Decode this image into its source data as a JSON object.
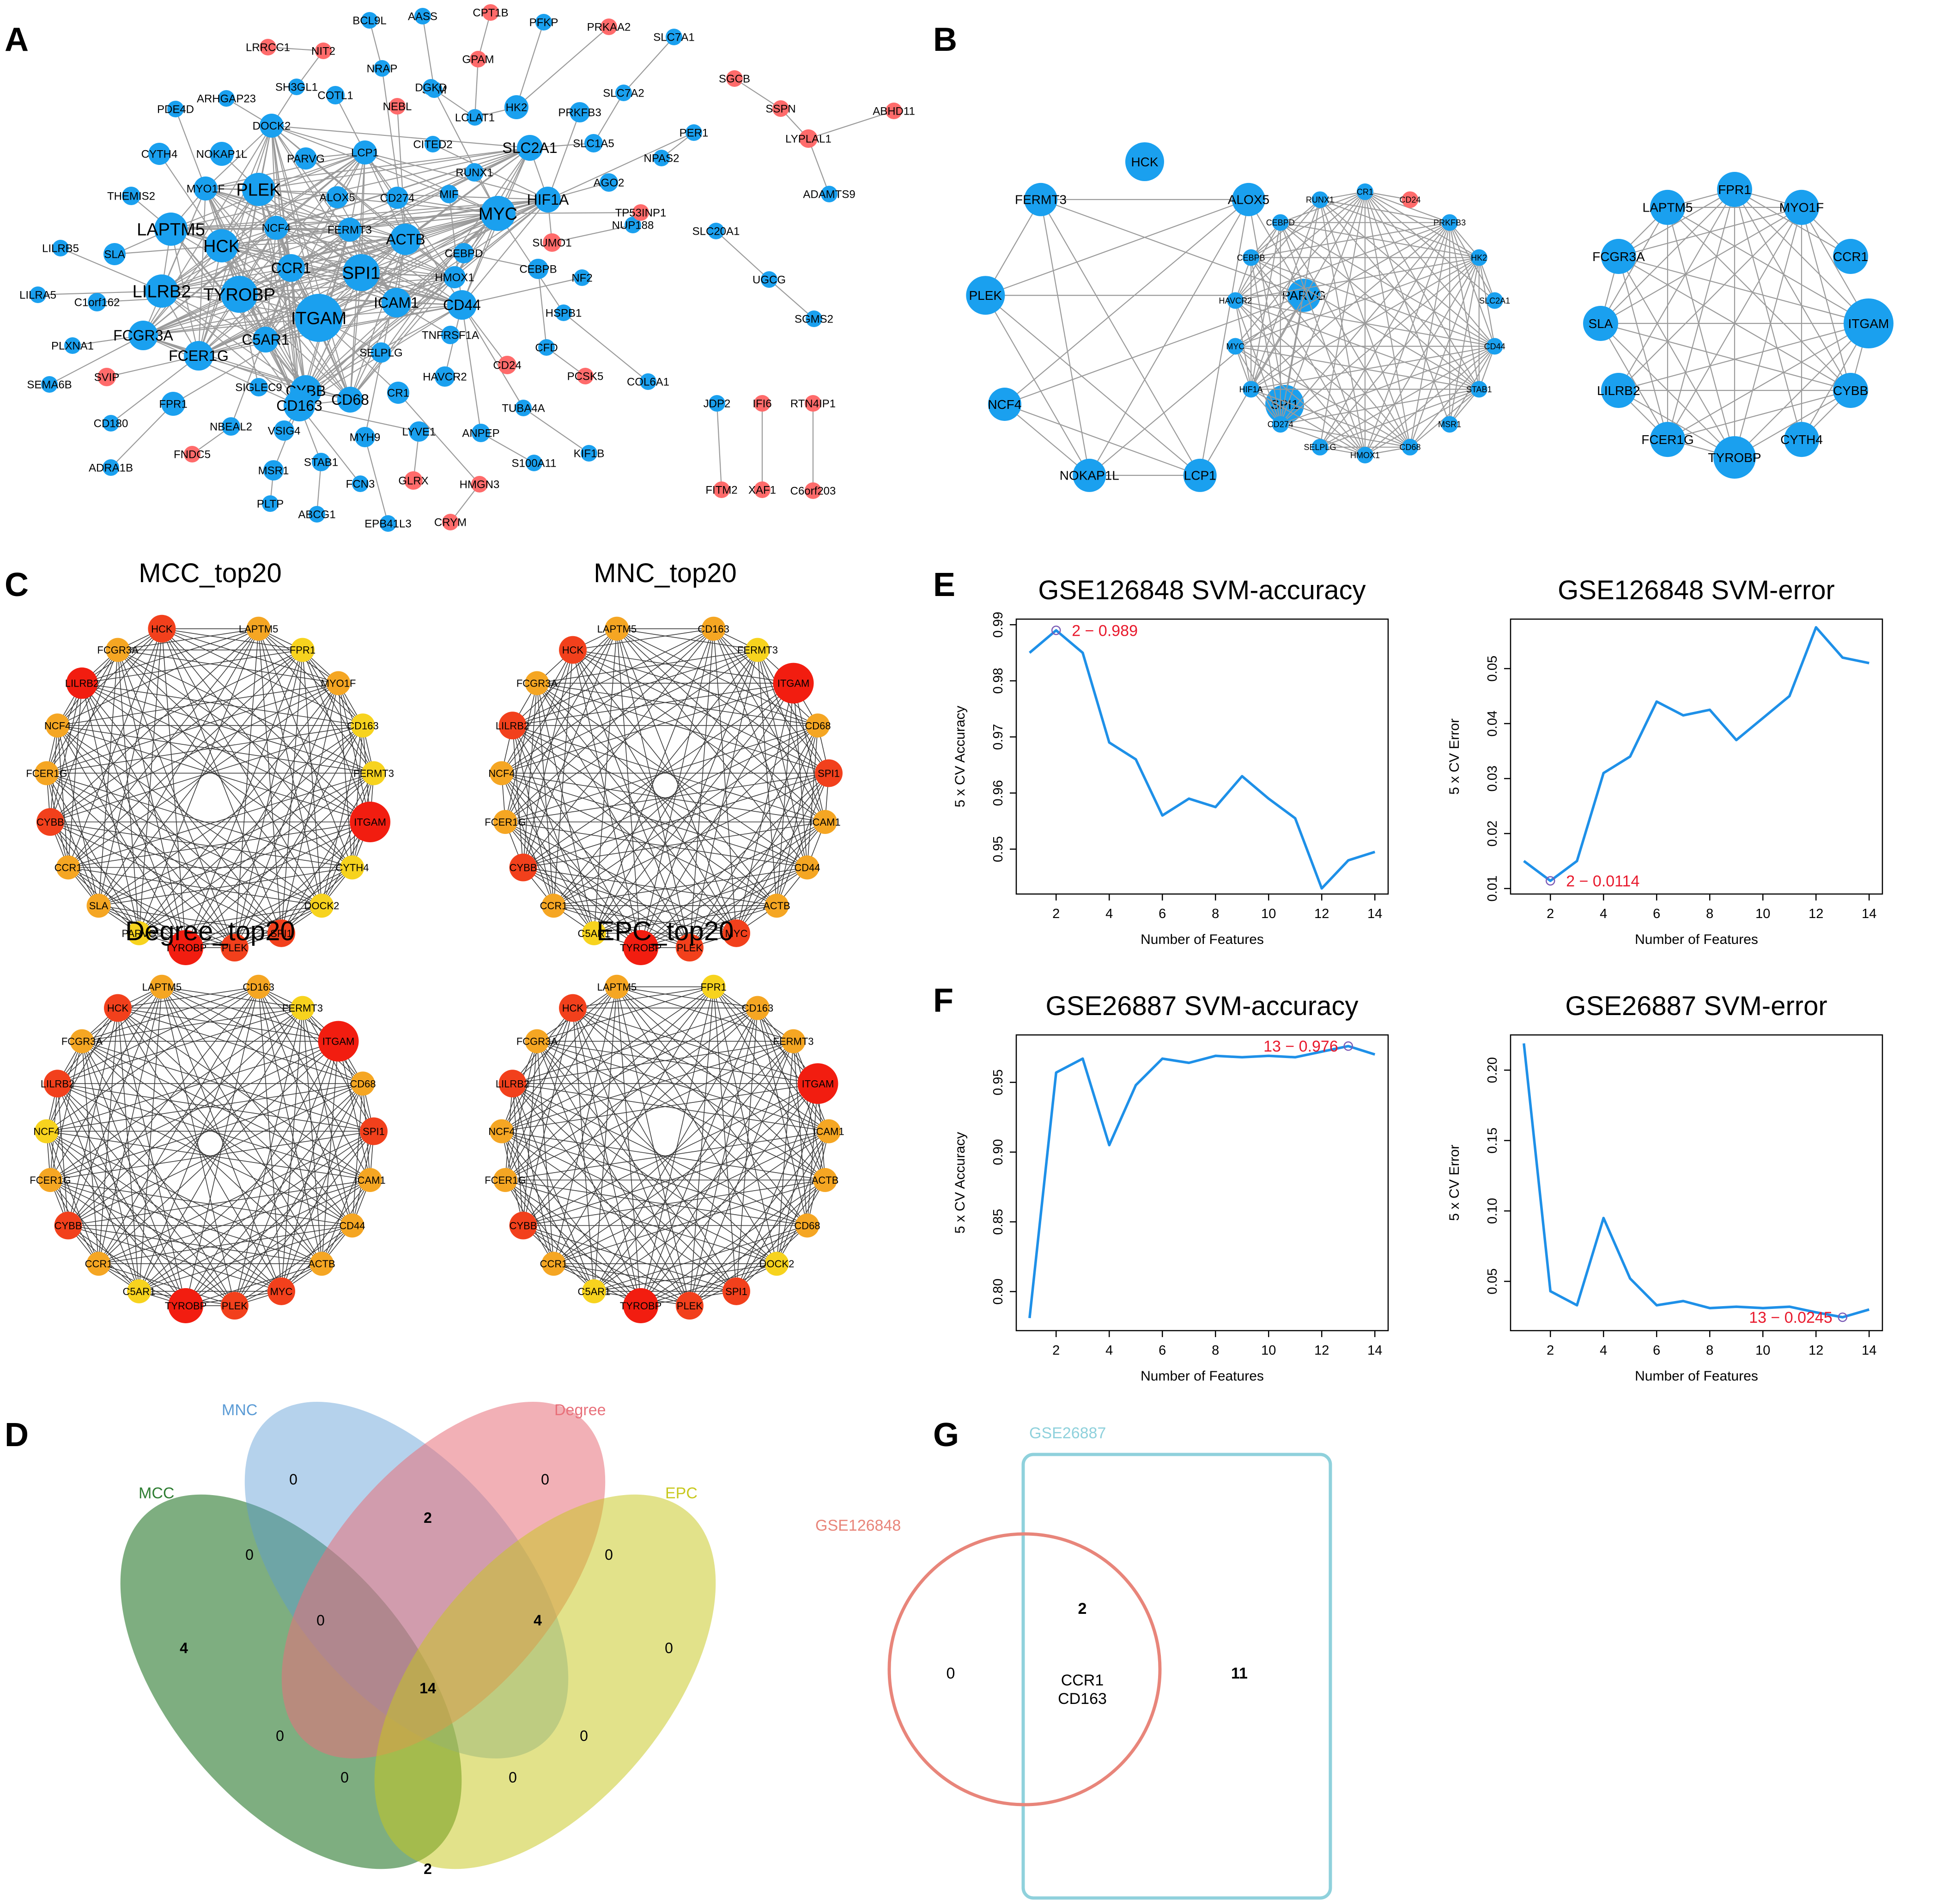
{
  "panel_labels": [
    "A",
    "B",
    "C",
    "D",
    "E",
    "F",
    "G"
  ],
  "colors": {
    "up": "#ff6b6b",
    "down": "#1aa0ef",
    "edge": "#9a9a9a",
    "line": "#1e90e8",
    "highlight": "#e8192c"
  },
  "panelA": {
    "nodes": [
      {
        "id": "ITGAM",
        "r": 52,
        "c": "down"
      },
      {
        "id": "TYROBP",
        "r": 40,
        "c": "down"
      },
      {
        "id": "SPI1",
        "r": 40,
        "c": "down"
      },
      {
        "id": "LILRB2",
        "r": 36,
        "c": "down"
      },
      {
        "id": "CYBB",
        "r": 34,
        "c": "down"
      },
      {
        "id": "FCGR3A",
        "r": 32,
        "c": "down"
      },
      {
        "id": "HCK",
        "r": 36,
        "c": "down"
      },
      {
        "id": "LAPTM5",
        "r": 36,
        "c": "down"
      },
      {
        "id": "CD163",
        "r": 34,
        "c": "down"
      },
      {
        "id": "ACTB",
        "r": 34,
        "c": "down"
      },
      {
        "id": "MYC",
        "r": 38,
        "c": "down"
      },
      {
        "id": "CD44",
        "r": 32,
        "c": "down"
      },
      {
        "id": "ICAM1",
        "r": 32,
        "c": "down"
      },
      {
        "id": "PLEK",
        "r": 36,
        "c": "down"
      },
      {
        "id": "CCR1",
        "r": 30,
        "c": "down"
      },
      {
        "id": "C5AR1",
        "r": 28,
        "c": "down"
      },
      {
        "id": "FCER1G",
        "r": 32,
        "c": "down"
      },
      {
        "id": "CD68",
        "r": 28,
        "c": "down"
      },
      {
        "id": "CYTH4",
        "r": 24,
        "c": "down"
      },
      {
        "id": "NOKAP1L",
        "r": 26,
        "c": "down"
      },
      {
        "id": "MYO1F",
        "r": 26,
        "c": "down"
      },
      {
        "id": "DOCK2",
        "r": 26,
        "c": "down"
      },
      {
        "id": "PARVG",
        "r": 24,
        "c": "down"
      },
      {
        "id": "LCP1",
        "r": 26,
        "c": "down"
      },
      {
        "id": "ALOX5",
        "r": 24,
        "c": "down"
      },
      {
        "id": "NCF4",
        "r": 26,
        "c": "down"
      },
      {
        "id": "FERMT3",
        "r": 26,
        "c": "down"
      },
      {
        "id": "CD274",
        "r": 24,
        "c": "down"
      },
      {
        "id": "MIF",
        "r": 20,
        "c": "down"
      },
      {
        "id": "HIF1A",
        "r": 28,
        "c": "down"
      },
      {
        "id": "SLC2A1",
        "r": 28,
        "c": "down"
      },
      {
        "id": "HK2",
        "r": 26,
        "c": "down"
      },
      {
        "id": "PRKFB3",
        "r": 22,
        "c": "down"
      },
      {
        "id": "RUNX1",
        "r": 20,
        "c": "down"
      },
      {
        "id": "HMOX1",
        "r": 24,
        "c": "down"
      },
      {
        "id": "CEBPD",
        "r": 22,
        "c": "down"
      },
      {
        "id": "CEBPB",
        "r": 22,
        "c": "down"
      },
      {
        "id": "SELPLG",
        "r": 22,
        "c": "down"
      },
      {
        "id": "CR1",
        "r": 24,
        "c": "down"
      },
      {
        "id": "HAVCR2",
        "r": 22,
        "c": "down"
      },
      {
        "id": "SLA",
        "r": 24,
        "c": "down"
      },
      {
        "id": "FPR1",
        "r": 26,
        "c": "down"
      },
      {
        "id": "SIGLEC9",
        "r": 20,
        "c": "down"
      },
      {
        "id": "VSIG4",
        "r": 22,
        "c": "down"
      },
      {
        "id": "MYH9",
        "r": 22,
        "c": "down"
      },
      {
        "id": "LYVE1",
        "r": 22,
        "c": "down"
      },
      {
        "id": "TNFRSF1A",
        "r": 20,
        "c": "down"
      },
      {
        "id": "STAB1",
        "r": 20,
        "c": "down"
      },
      {
        "id": "MSR1",
        "r": 22,
        "c": "down"
      },
      {
        "id": "NBEAL2",
        "r": 20,
        "c": "down"
      },
      {
        "id": "CD180",
        "r": 18,
        "c": "down"
      },
      {
        "id": "THEMIS2",
        "r": 20,
        "c": "down"
      },
      {
        "id": "LILRB5",
        "r": 18,
        "c": "down"
      },
      {
        "id": "LILRA5",
        "r": 18,
        "c": "down"
      },
      {
        "id": "C1orf162",
        "r": 20,
        "c": "down"
      },
      {
        "id": "PLXNA1",
        "r": 18,
        "c": "down"
      },
      {
        "id": "SEMA6B",
        "r": 18,
        "c": "down"
      },
      {
        "id": "SVIP",
        "r": 20,
        "c": "up"
      },
      {
        "id": "ADRA1B",
        "r": 18,
        "c": "down"
      },
      {
        "id": "FNDC5",
        "r": 18,
        "c": "up"
      },
      {
        "id": "PLTP",
        "r": 18,
        "c": "down"
      },
      {
        "id": "ABCG1",
        "r": 18,
        "c": "down"
      },
      {
        "id": "EPB41L3",
        "r": 18,
        "c": "down"
      },
      {
        "id": "FCN3",
        "r": 18,
        "c": "down"
      },
      {
        "id": "GLRX",
        "r": 20,
        "c": "up"
      },
      {
        "id": "CRYM",
        "r": 18,
        "c": "up"
      },
      {
        "id": "HMGN3",
        "r": 18,
        "c": "up"
      },
      {
        "id": "S100A11",
        "r": 18,
        "c": "down"
      },
      {
        "id": "ANPEP",
        "r": 20,
        "c": "down"
      },
      {
        "id": "TUBA4A",
        "r": 18,
        "c": "down"
      },
      {
        "id": "KIF1B",
        "r": 18,
        "c": "down"
      },
      {
        "id": "CD24",
        "r": 20,
        "c": "up"
      },
      {
        "id": "CFD",
        "r": 18,
        "c": "down"
      },
      {
        "id": "PCSK5",
        "r": 18,
        "c": "up"
      },
      {
        "id": "COL6A1",
        "r": 18,
        "c": "down"
      },
      {
        "id": "HSPB1",
        "r": 18,
        "c": "down"
      },
      {
        "id": "NF2",
        "r": 18,
        "c": "down"
      },
      {
        "id": "SUMO1",
        "r": 20,
        "c": "up"
      },
      {
        "id": "NUP188",
        "r": 18,
        "c": "down"
      },
      {
        "id": "TP53INP1",
        "r": 18,
        "c": "up"
      },
      {
        "id": "AGO2",
        "r": 20,
        "c": "down"
      },
      {
        "id": "NPAS2",
        "r": 18,
        "c": "down"
      },
      {
        "id": "PER1",
        "r": 18,
        "c": "down"
      },
      {
        "id": "SLC1A5",
        "r": 20,
        "c": "down"
      },
      {
        "id": "SLC7A2",
        "r": 18,
        "c": "down"
      },
      {
        "id": "SLC7A1",
        "r": 18,
        "c": "down"
      },
      {
        "id": "PRKAA2",
        "r": 18,
        "c": "up"
      },
      {
        "id": "PFKP",
        "r": 18,
        "c": "down"
      },
      {
        "id": "CPT1B",
        "r": 18,
        "c": "up"
      },
      {
        "id": "GPAM",
        "r": 18,
        "c": "up"
      },
      {
        "id": "LCLAT1",
        "r": 18,
        "c": "down"
      },
      {
        "id": "SRM",
        "r": 18,
        "c": "down"
      },
      {
        "id": "DGKD",
        "r": 18,
        "c": "down"
      },
      {
        "id": "AASS",
        "r": 18,
        "c": "down"
      },
      {
        "id": "BCL9L",
        "r": 18,
        "c": "down"
      },
      {
        "id": "NRAP",
        "r": 18,
        "c": "down"
      },
      {
        "id": "NIT2",
        "r": 18,
        "c": "up"
      },
      {
        "id": "LRRCC1",
        "r": 18,
        "c": "up"
      },
      {
        "id": "SH3GL1",
        "r": 18,
        "c": "down"
      },
      {
        "id": "COTL1",
        "r": 20,
        "c": "down"
      },
      {
        "id": "NEBL",
        "r": 18,
        "c": "up"
      },
      {
        "id": "CITED2",
        "r": 18,
        "c": "down"
      },
      {
        "id": "ARHGAP23",
        "r": 18,
        "c": "down"
      },
      {
        "id": "PDE4D",
        "r": 18,
        "c": "down"
      },
      {
        "id": "SGCB",
        "r": 18,
        "c": "up"
      },
      {
        "id": "SSPN",
        "r": 18,
        "c": "up"
      },
      {
        "id": "LYPLAL1",
        "r": 20,
        "c": "up"
      },
      {
        "id": "ABHD11",
        "r": 18,
        "c": "up"
      },
      {
        "id": "ADAMTS9",
        "r": 18,
        "c": "down"
      },
      {
        "id": "SLC20A1",
        "r": 18,
        "c": "down"
      },
      {
        "id": "UGCG",
        "r": 18,
        "c": "down"
      },
      {
        "id": "SGMS2",
        "r": 18,
        "c": "down"
      },
      {
        "id": "JDP2",
        "r": 18,
        "c": "down"
      },
      {
        "id": "FITM2",
        "r": 18,
        "c": "up"
      },
      {
        "id": "IFI6",
        "r": 18,
        "c": "up"
      },
      {
        "id": "XAF1",
        "r": 18,
        "c": "up"
      },
      {
        "id": "RTN4IP1",
        "r": 18,
        "c": "up"
      },
      {
        "id": "C6orf203",
        "r": 18,
        "c": "up"
      }
    ]
  },
  "panelB": {
    "networks": [
      {
        "nodes": [
          "HCK",
          "ALOX5",
          "PARVG",
          "SPI1",
          "LCP1",
          "NOKAP1L",
          "NCF4",
          "PLEK",
          "FERMT3"
        ],
        "colors": [
          "down",
          "down",
          "down",
          "down",
          "down",
          "down",
          "down",
          "down",
          "down"
        ]
      },
      {
        "nodes": [
          "CR1",
          "CD24",
          "PRKFB3",
          "HK2",
          "SLC2A1",
          "CD44",
          "STAB1",
          "MSR1",
          "CD68",
          "HMOX1",
          "SELPLG",
          "CD274",
          "HIF1A",
          "MYC",
          "HAVCR2",
          "CEBPB",
          "CEBPD",
          "RUNX1"
        ],
        "colors": [
          "down",
          "up",
          "down",
          "down",
          "down",
          "down",
          "down",
          "down",
          "down",
          "down",
          "down",
          "down",
          "down",
          "down",
          "down",
          "down",
          "down",
          "down"
        ]
      },
      {
        "nodes": [
          "FPR1",
          "MYO1F",
          "CCR1",
          "ITGAM",
          "CYBB",
          "CYTH4",
          "TYROBP",
          "FCER1G",
          "LILRB2",
          "SLA",
          "FCGR3A",
          "LAPTM5"
        ],
        "colors": [
          "down",
          "down",
          "down",
          "down",
          "down",
          "down",
          "down",
          "down",
          "down",
          "down",
          "down",
          "down"
        ]
      }
    ]
  },
  "panelC": {
    "networks": [
      {
        "title": "MCC_top20",
        "nodes": [
          "LAPTM5",
          "FPR1",
          "MYO1F",
          "CD163",
          "FERMT3",
          "ITGAM",
          "CYTH4",
          "DOCK2",
          "SPI1",
          "PLEK",
          "TYROBP",
          "PARVG",
          "SLA",
          "CCR1",
          "CYBB",
          "FCER1G",
          "NCF4",
          "LILRB2",
          "FCGR3A",
          "HCK"
        ],
        "colors": [
          "#f5a623",
          "#f7d31e",
          "#f5a623",
          "#f7d31e",
          "#f7d31e",
          "#f21d10",
          "#f7d31e",
          "#f7d31e",
          "#f2401c",
          "#f2401c",
          "#f21d10",
          "#f7d31e",
          "#f5a623",
          "#f5a623",
          "#f2401c",
          "#f5a623",
          "#f5a623",
          "#f21d10",
          "#f5a623",
          "#f2401c"
        ]
      },
      {
        "title": "MNC_top20",
        "nodes": [
          "CD163",
          "FERMT3",
          "ITGAM",
          "CD68",
          "SPI1",
          "ICAM1",
          "CD44",
          "ACTB",
          "MYC",
          "PLEK",
          "TYROBP",
          "C5AR1",
          "CCR1",
          "CYBB",
          "FCER1G",
          "NCF4",
          "LILRB2",
          "FCGR3A",
          "HCK",
          "LAPTM5"
        ],
        "colors": [
          "#f5a623",
          "#f7d31e",
          "#f21d10",
          "#f5a623",
          "#f2401c",
          "#f5a623",
          "#f5a623",
          "#f5a623",
          "#f2401c",
          "#f2401c",
          "#f21d10",
          "#f7d31e",
          "#f5a623",
          "#f2401c",
          "#f5a623",
          "#f5a623",
          "#f2401c",
          "#f5a623",
          "#f2401c",
          "#f5a623"
        ]
      },
      {
        "title": "Degree_top20",
        "nodes": [
          "CD163",
          "FERMT3",
          "ITGAM",
          "CD68",
          "SPI1",
          "ICAM1",
          "CD44",
          "ACTB",
          "MYC",
          "PLEK",
          "TYROBP",
          "C5AR1",
          "CCR1",
          "CYBB",
          "FCER1G",
          "NCF4",
          "LILRB2",
          "FCGR3A",
          "HCK",
          "LAPTM5"
        ],
        "colors": [
          "#f5a623",
          "#f7d31e",
          "#f21d10",
          "#f5a623",
          "#f2401c",
          "#f5a623",
          "#f5a623",
          "#f5a623",
          "#f2401c",
          "#f2401c",
          "#f21d10",
          "#f7d31e",
          "#f5a623",
          "#f2401c",
          "#f5a623",
          "#f7d31e",
          "#f2401c",
          "#f5a623",
          "#f2401c",
          "#f5a623"
        ]
      },
      {
        "title": "EPC_top20",
        "nodes": [
          "FPR1",
          "CD163",
          "FERMT3",
          "ITGAM",
          "ICAM1",
          "ACTB",
          "CD68",
          "DOCK2",
          "SPI1",
          "PLEK",
          "TYROBP",
          "C5AR1",
          "CCR1",
          "CYBB",
          "FCER1G",
          "NCF4",
          "LILRB2",
          "FCGR3A",
          "HCK",
          "LAPTM5"
        ],
        "colors": [
          "#f7d31e",
          "#f5a623",
          "#f5a623",
          "#f21d10",
          "#f5a623",
          "#f5a623",
          "#f5a623",
          "#f7d31e",
          "#f2401c",
          "#f2401c",
          "#f21d10",
          "#f7d31e",
          "#f5a623",
          "#f2401c",
          "#f5a623",
          "#f5a623",
          "#f2401c",
          "#f5a623",
          "#f2401c",
          "#f5a623"
        ]
      }
    ]
  },
  "panelD": {
    "sets": [
      {
        "name": "MCC",
        "color": "#2e7d32"
      },
      {
        "name": "MNC",
        "color": "#5b9bd5"
      },
      {
        "name": "Degree",
        "color": "#e8707a"
      },
      {
        "name": "EPC",
        "color": "#c8c81e"
      }
    ],
    "counts": {
      "mnc_only": "0",
      "degree_only": "0",
      "mcc_only": "4",
      "epc_only": "0",
      "mcc_mnc": "0",
      "mnc_degree": "2",
      "degree_epc": "0",
      "mcc_epc": "2",
      "mcc_mnc_degree": "0",
      "mnc_degree_epc": "4",
      "all": "14",
      "mcc_degree": "0",
      "mnc_epc": "0",
      "mcc_mnc_epc": "0",
      "mcc_degree_epc": "0"
    }
  },
  "panelG": {
    "setA": "GSE126848",
    "setB": "GSE26887",
    "colorA": "#e8857a",
    "colorB": "#8fd1dc",
    "onlyA": "0",
    "both": "2",
    "onlyB": "11",
    "genes": [
      "CCR1",
      "CD163"
    ]
  },
  "chart_data": [
    {
      "type": "line",
      "title": "GSE126848 SVM-accuracy",
      "xlabel": "Number of Features",
      "ylabel": "5 x CV Accuracy",
      "x": [
        1,
        2,
        3,
        4,
        5,
        6,
        7,
        8,
        9,
        10,
        11,
        12,
        13,
        14
      ],
      "values": [
        0.985,
        0.989,
        0.985,
        0.969,
        0.966,
        0.956,
        0.959,
        0.9575,
        0.963,
        0.959,
        0.9555,
        0.943,
        0.948,
        0.9495
      ],
      "xlim": [
        0.5,
        14.5
      ],
      "ylim": [
        0.942,
        0.991
      ],
      "xticks": [
        2,
        4,
        6,
        8,
        10,
        12,
        14
      ],
      "yticks": [
        0.95,
        0.96,
        0.97,
        0.98,
        0.99
      ],
      "ytick_labels": [
        "0.95",
        "0.96",
        "0.97",
        "0.98",
        "0.99"
      ],
      "annotation": "2 − 0.989",
      "best_index": 1,
      "label_side": "right"
    },
    {
      "type": "line",
      "title": "GSE126848 SVM-error",
      "xlabel": "Number of Features",
      "ylabel": "5 x CV Error",
      "x": [
        1,
        2,
        3,
        4,
        5,
        6,
        7,
        8,
        9,
        10,
        11,
        12,
        13,
        14
      ],
      "values": [
        0.015,
        0.0114,
        0.015,
        0.031,
        0.034,
        0.044,
        0.0415,
        0.0425,
        0.037,
        0.041,
        0.045,
        0.0575,
        0.052,
        0.051
      ],
      "xlim": [
        0.5,
        14.5
      ],
      "ylim": [
        0.009,
        0.059
      ],
      "xticks": [
        2,
        4,
        6,
        8,
        10,
        12,
        14
      ],
      "yticks": [
        0.01,
        0.02,
        0.03,
        0.04,
        0.05
      ],
      "ytick_labels": [
        "0.01",
        "0.02",
        "0.03",
        "0.04",
        "0.05"
      ],
      "annotation": "2 − 0.0114",
      "best_index": 1,
      "label_side": "right"
    },
    {
      "type": "line",
      "title": "GSE26887 SVM-accuracy",
      "xlabel": "Number of Features",
      "ylabel": "5 x CV Accuracy",
      "x": [
        1,
        2,
        3,
        4,
        5,
        6,
        7,
        8,
        9,
        10,
        11,
        12,
        13,
        14
      ],
      "values": [
        0.781,
        0.957,
        0.967,
        0.905,
        0.948,
        0.967,
        0.964,
        0.969,
        0.968,
        0.969,
        0.968,
        0.972,
        0.976,
        0.97
      ],
      "xlim": [
        0.5,
        14.5
      ],
      "ylim": [
        0.772,
        0.984
      ],
      "xticks": [
        2,
        4,
        6,
        8,
        10,
        12,
        14
      ],
      "yticks": [
        0.8,
        0.85,
        0.9,
        0.95
      ],
      "ytick_labels": [
        "0.80",
        "0.85",
        "0.90",
        "0.95"
      ],
      "annotation": "13 − 0.976",
      "best_index": 12,
      "label_side": "left"
    },
    {
      "type": "line",
      "title": "GSE26887 SVM-error",
      "xlabel": "Number of Features",
      "ylabel": "5 x CV Error",
      "x": [
        1,
        2,
        3,
        4,
        5,
        6,
        7,
        8,
        9,
        10,
        11,
        12,
        13,
        14
      ],
      "values": [
        0.219,
        0.043,
        0.033,
        0.095,
        0.052,
        0.033,
        0.036,
        0.031,
        0.032,
        0.031,
        0.032,
        0.028,
        0.0245,
        0.03
      ],
      "xlim": [
        0.5,
        14.5
      ],
      "ylim": [
        0.015,
        0.225
      ],
      "xticks": [
        2,
        4,
        6,
        8,
        10,
        12,
        14
      ],
      "yticks": [
        0.05,
        0.1,
        0.15,
        0.2
      ],
      "ytick_labels": [
        "0.05",
        "0.10",
        "0.15",
        "0.20"
      ],
      "annotation": "13 − 0.0245",
      "best_index": 12,
      "label_side": "left"
    }
  ]
}
